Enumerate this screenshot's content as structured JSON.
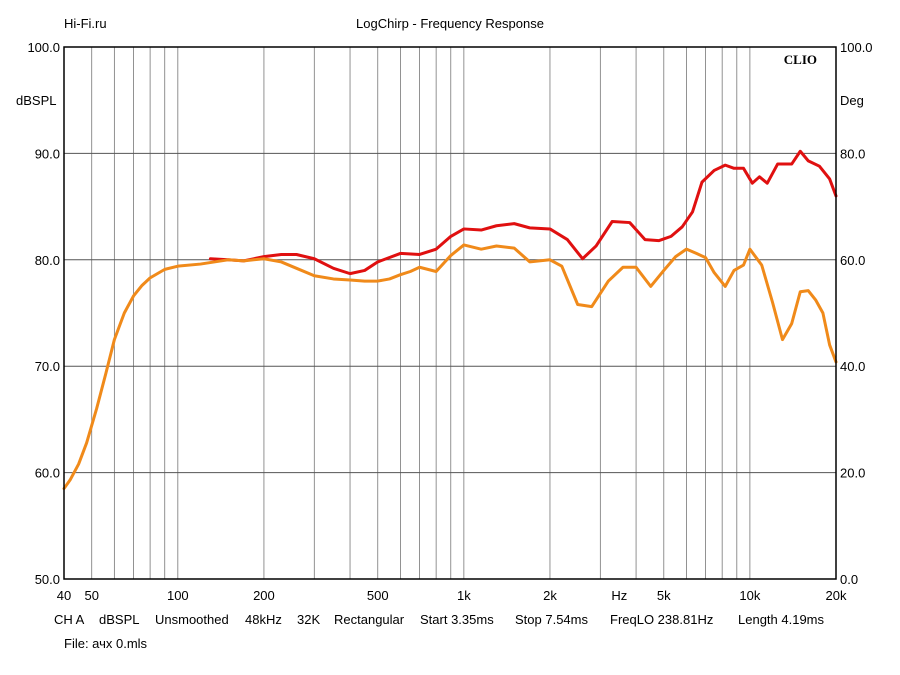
{
  "header": {
    "site": "Hi-Fi.ru",
    "title": "LogChirp - Frequency Response"
  },
  "footer": {
    "params": [
      "CH A",
      "dBSPL",
      "Unsmoothed",
      "48kHz",
      "32K",
      "Rectangular",
      "Start 3.35ms",
      "Stop 7.54ms",
      "FreqLO 238.81Hz",
      "Length 4.19ms"
    ],
    "file": "File: ачх 0.mls"
  },
  "chart_data": {
    "type": "line",
    "xscale": "log",
    "xlim": [
      40,
      20000
    ],
    "ylim": [
      50,
      100
    ],
    "y2lim": [
      0,
      100
    ],
    "grid": true,
    "brand": "CLIO",
    "ylabel": "dBSPL",
    "y2label": "Deg",
    "xunit": "Hz",
    "x_ticks": [
      40,
      50,
      100,
      200,
      500,
      1000,
      2000,
      5000,
      10000,
      20000
    ],
    "x_tick_labels": [
      "40",
      "50",
      "100",
      "200",
      "500",
      "1k",
      "2k",
      "5k",
      "10k",
      "20k"
    ],
    "x_gridlines": [
      50,
      60,
      70,
      80,
      90,
      100,
      200,
      300,
      400,
      500,
      600,
      700,
      800,
      900,
      1000,
      2000,
      3000,
      4000,
      5000,
      6000,
      7000,
      8000,
      9000,
      10000,
      20000
    ],
    "y_ticks": [
      50,
      60,
      70,
      80,
      90,
      100
    ],
    "y_tick_labels": [
      "50.0",
      "60.0",
      "70.0",
      "80.0",
      "90.0",
      "100.0"
    ],
    "y2_tick_labels": [
      "0.0",
      "20.0",
      "40.0",
      "60.0",
      "80.0",
      "100.0"
    ],
    "series": [
      {
        "color": "#e01010",
        "x": [
          130,
          150,
          170,
          200,
          230,
          260,
          300,
          350,
          400,
          450,
          500,
          600,
          700,
          800,
          900,
          1000,
          1150,
          1300,
          1500,
          1700,
          2000,
          2300,
          2600,
          2900,
          3300,
          3800,
          4300,
          4800,
          5300,
          5800,
          6300,
          6800,
          7500,
          8200,
          8800,
          9500,
          10200,
          10800,
          11500,
          12500,
          14000,
          15000,
          16000,
          17500,
          19000,
          20000
        ],
        "y": [
          80.1,
          80.0,
          79.9,
          80.3,
          80.5,
          80.5,
          80.1,
          79.2,
          78.7,
          79.0,
          79.8,
          80.6,
          80.5,
          81.0,
          82.2,
          82.9,
          82.8,
          83.2,
          83.4,
          83.0,
          82.9,
          81.9,
          80.1,
          81.3,
          83.6,
          83.5,
          81.9,
          81.8,
          82.2,
          83.1,
          84.5,
          87.3,
          88.4,
          88.9,
          88.6,
          88.6,
          87.2,
          87.8,
          87.2,
          89.0,
          89.0,
          90.2,
          89.3,
          88.8,
          87.6,
          86.0
        ],
        "y_units": "dBSPL"
      },
      {
        "color": "#f08a1a",
        "x": [
          40,
          42,
          45,
          48,
          52,
          56,
          60,
          65,
          70,
          75,
          80,
          90,
          100,
          120,
          150,
          170,
          200,
          230,
          260,
          300,
          350,
          400,
          450,
          500,
          550,
          600,
          650,
          700,
          800,
          900,
          1000,
          1150,
          1300,
          1500,
          1700,
          2000,
          2200,
          2500,
          2800,
          3200,
          3600,
          4000,
          4500,
          5000,
          5500,
          6000,
          6500,
          7000,
          7500,
          8200,
          8800,
          9500,
          10000,
          11000,
          12000,
          13000,
          14000,
          15000,
          16000,
          17000,
          18000,
          19000,
          20000
        ],
        "y": [
          58.5,
          59.3,
          60.8,
          62.8,
          66.0,
          69.3,
          72.5,
          75.0,
          76.6,
          77.6,
          78.3,
          79.1,
          79.4,
          79.6,
          80.0,
          79.9,
          80.1,
          79.8,
          79.2,
          78.5,
          78.2,
          78.1,
          78.0,
          78.0,
          78.2,
          78.6,
          78.9,
          79.3,
          78.9,
          80.4,
          81.4,
          81.0,
          81.3,
          81.1,
          79.8,
          80.0,
          79.4,
          75.8,
          75.6,
          78.0,
          79.3,
          79.3,
          77.5,
          79.0,
          80.3,
          81.0,
          80.6,
          80.2,
          78.8,
          77.5,
          79.0,
          79.5,
          81.0,
          79.5,
          76.0,
          72.5,
          74.0,
          77.0,
          77.1,
          76.2,
          75.0,
          72.0,
          70.4
        ],
        "y_units": "dBSPL"
      }
    ]
  }
}
